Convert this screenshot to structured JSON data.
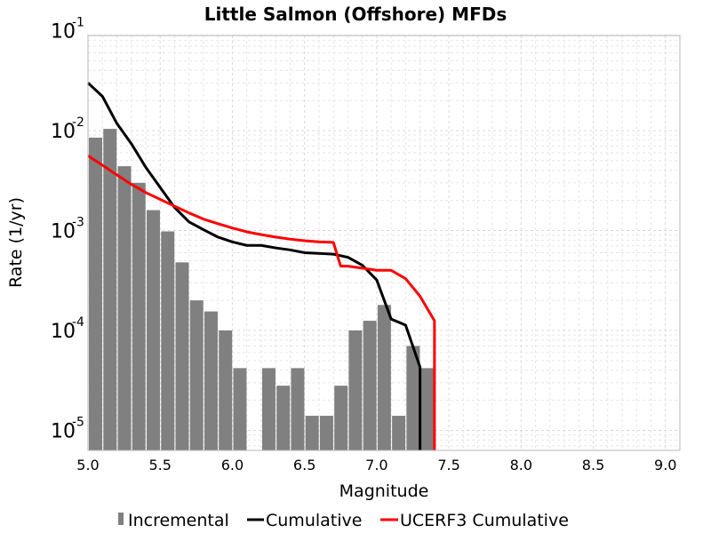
{
  "chart_data": {
    "type": "bar",
    "title": "Little Salmon (Offshore) MFDs",
    "xlabel": "Magnitude",
    "ylabel": "Rate (1/yr)",
    "xlim": [
      5.0,
      9.1
    ],
    "ylim": [
      6e-06,
      0.1
    ],
    "yscale": "log",
    "grid": true,
    "legend_position": "bottom",
    "x_ticks": [
      "5.0",
      "5.5",
      "6.0",
      "6.5",
      "7.0",
      "7.5",
      "8.0",
      "8.5",
      "9.0"
    ],
    "y_ticks": [
      {
        "base": "10",
        "exp": "-5",
        "value": 1e-05
      },
      {
        "base": "10",
        "exp": "-4",
        "value": 0.0001
      },
      {
        "base": "10",
        "exp": "-3",
        "value": 0.001
      },
      {
        "base": "10",
        "exp": "-2",
        "value": 0.01
      },
      {
        "base": "10",
        "exp": "-1",
        "value": 0.1
      }
    ],
    "series": [
      {
        "name": "Incremental",
        "type": "bar",
        "color": "#808080",
        "x": [
          5.0,
          5.1,
          5.2,
          5.3,
          5.4,
          5.5,
          5.6,
          5.7,
          5.8,
          5.9,
          6.0,
          6.2,
          6.3,
          6.4,
          6.5,
          6.6,
          6.7,
          6.8,
          6.9,
          7.0,
          7.1,
          7.2,
          7.3
        ],
        "y": [
          0.0085,
          0.0104,
          0.0044,
          0.003,
          0.0016,
          0.00098,
          0.00048,
          0.0002,
          0.000155,
          0.0001,
          4.2e-05,
          4.2e-05,
          2.8e-05,
          4.2e-05,
          1.4e-05,
          1.4e-05,
          2.8e-05,
          0.0001,
          0.000125,
          0.00018,
          1.4e-05,
          7e-05,
          4.2e-05
        ]
      },
      {
        "name": "Cumulative",
        "type": "line",
        "color": "#000000",
        "x": [
          5.0,
          5.1,
          5.2,
          5.3,
          5.4,
          5.5,
          5.6,
          5.7,
          5.8,
          5.9,
          6.0,
          6.1,
          6.2,
          6.3,
          6.4,
          6.5,
          6.6,
          6.7,
          6.8,
          6.9,
          7.0,
          7.1,
          7.2,
          7.3,
          7.3
        ],
        "y": [
          0.03,
          0.022,
          0.0118,
          0.0074,
          0.0043,
          0.0027,
          0.0017,
          0.00122,
          0.00102,
          0.00086,
          0.00077,
          0.00071,
          0.00071,
          0.00067,
          0.00064,
          0.0006,
          0.00059,
          0.00058,
          0.00054,
          0.00045,
          0.00032,
          0.00013,
          0.000113,
          4.3e-05,
          4e-06
        ]
      },
      {
        "name": "UCERF3 Cumulative",
        "type": "line",
        "color": "#ff0000",
        "x": [
          5.0,
          5.1,
          5.2,
          5.3,
          5.4,
          5.5,
          5.6,
          5.7,
          5.8,
          5.9,
          6.0,
          6.1,
          6.2,
          6.3,
          6.4,
          6.5,
          6.6,
          6.7,
          6.75,
          6.8,
          6.9,
          7.0,
          7.1,
          7.2,
          7.3,
          7.4,
          7.4
        ],
        "y": [
          0.0056,
          0.0045,
          0.0036,
          0.0029,
          0.0024,
          0.00205,
          0.00175,
          0.0015,
          0.0013,
          0.00117,
          0.00106,
          0.00097,
          0.00091,
          0.00086,
          0.00082,
          0.00079,
          0.00077,
          0.00076,
          0.00044,
          0.00044,
          0.00042,
          0.0004,
          0.0004,
          0.00033,
          0.00022,
          0.000125,
          4e-06
        ]
      }
    ]
  }
}
